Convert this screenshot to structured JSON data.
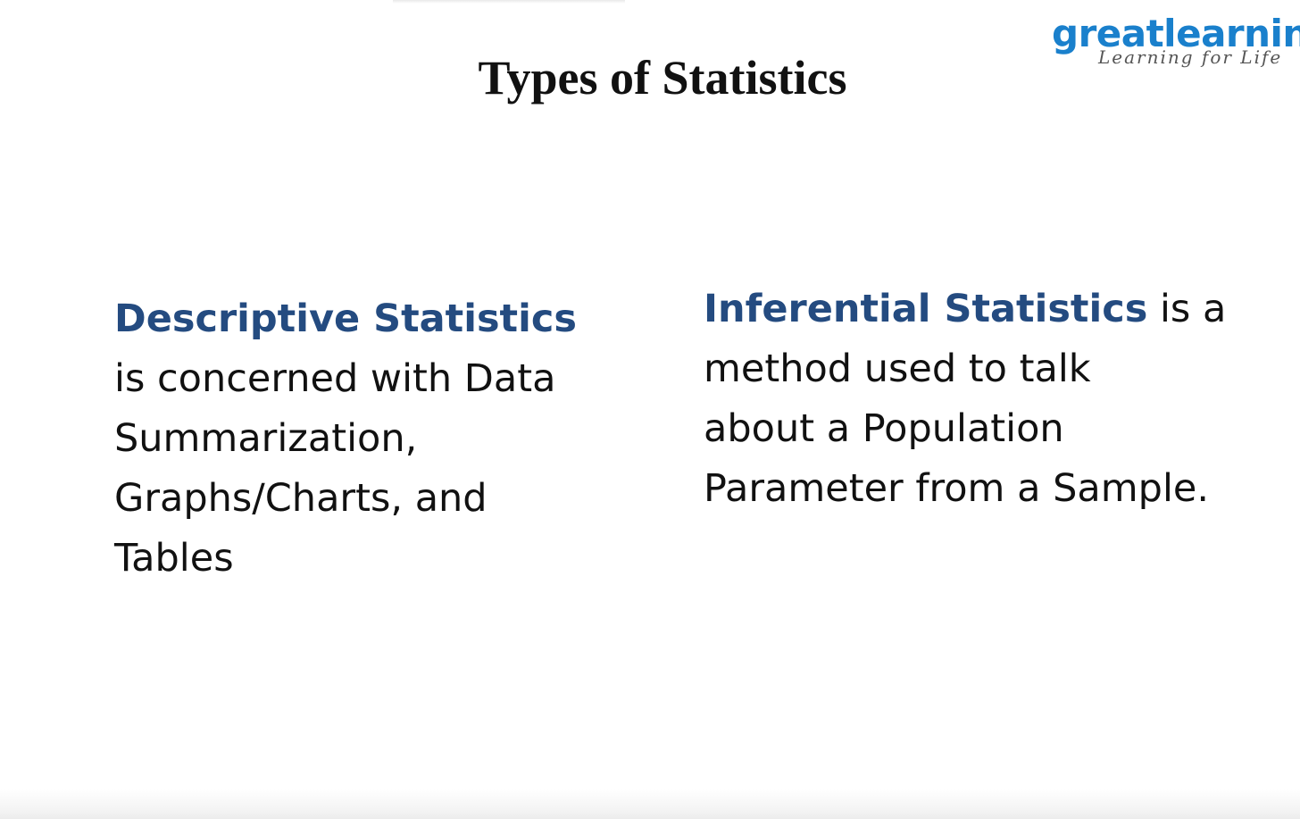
{
  "logo": {
    "wordmark": "greatlearning",
    "tagline": "Learning for Life"
  },
  "title": "Types of Statistics",
  "descriptive": {
    "term": "Descriptive Statistics",
    "lines": [
      "is concerned with Data",
      "Summarization,",
      "Graphs/Charts, and",
      "Tables"
    ]
  },
  "inferential": {
    "term": "Inferential Statistics",
    "first_line_rest": " is a",
    "lines": [
      "method used to talk",
      "about a Population",
      "Parameter from a Sample."
    ]
  },
  "colors": {
    "logo_blue": "#1a80cc",
    "term_blue": "#244b80",
    "body_text": "#111111"
  }
}
